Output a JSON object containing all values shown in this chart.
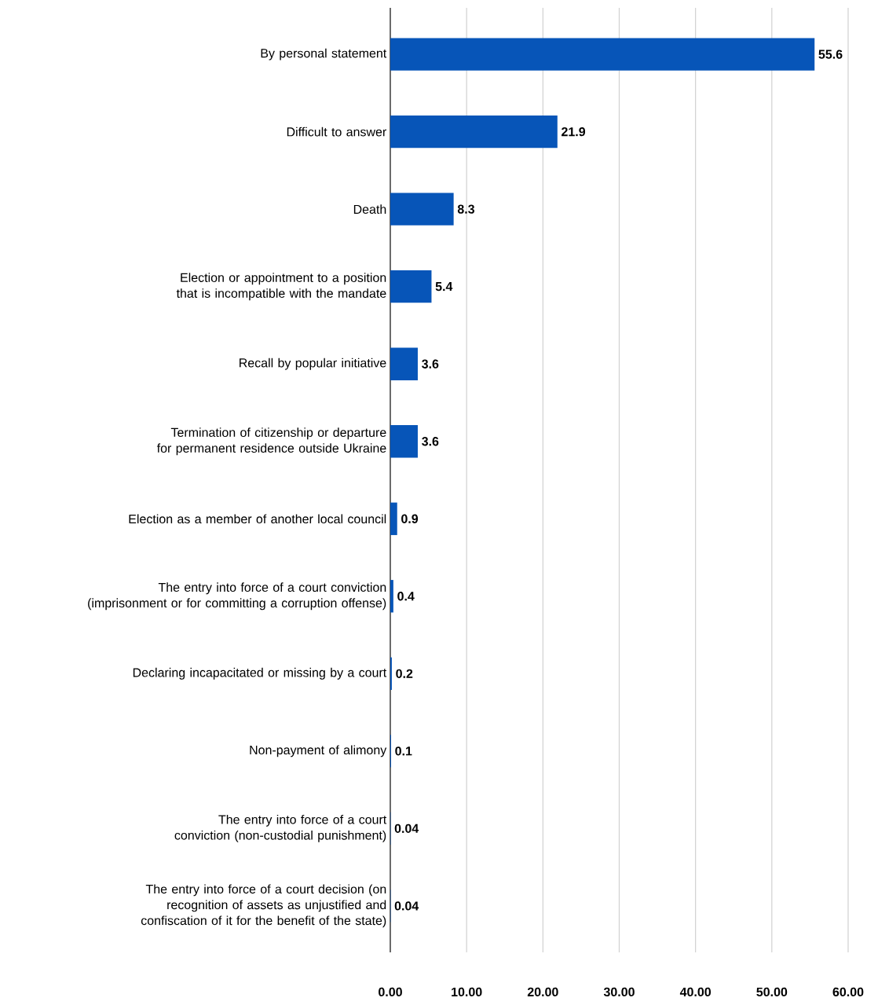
{
  "chart_data": {
    "type": "bar",
    "orientation": "horizontal",
    "categories": [
      "By personal statement",
      "Difficult to answer",
      "Death",
      "Election or appointment to a position that is incompatible with the mandate",
      "Recall by popular initiative",
      "Termination of citizenship or departure for permanent residence outside Ukraine",
      "Election as a member of another local council",
      "The entry into force of a court conviction (imprisonment or for committing a corruption offense)",
      "Declaring incapacitated or missing by a court",
      "Non-payment of alimony",
      "The entry into force of a court conviction (non-custodial punishment)",
      "The entry into force of a court decision (on recognition of assets as unjustified and confiscation of it for the benefit of the state)"
    ],
    "values": [
      55.6,
      21.9,
      8.3,
      5.4,
      3.6,
      3.6,
      0.9,
      0.4,
      0.2,
      0.1,
      0.04,
      0.04
    ],
    "value_labels": [
      "55.6",
      "21.9",
      "8.3",
      "5.4",
      "3.6",
      "3.6",
      "0.9",
      "0.4",
      "0.2",
      "0.1",
      "0.04",
      "0.04"
    ],
    "color": "#0755b8",
    "xlim": [
      0,
      60
    ],
    "xticks": [
      {
        "value": 0,
        "label": "0.00"
      },
      {
        "value": 10,
        "label": "10.00"
      },
      {
        "value": 20,
        "label": "20.00"
      },
      {
        "value": 30,
        "label": "30.00"
      },
      {
        "value": 40,
        "label": "40.00"
      },
      {
        "value": 50,
        "label": "50.00"
      },
      {
        "value": 60,
        "label": "60.00"
      }
    ],
    "grid": "x"
  }
}
